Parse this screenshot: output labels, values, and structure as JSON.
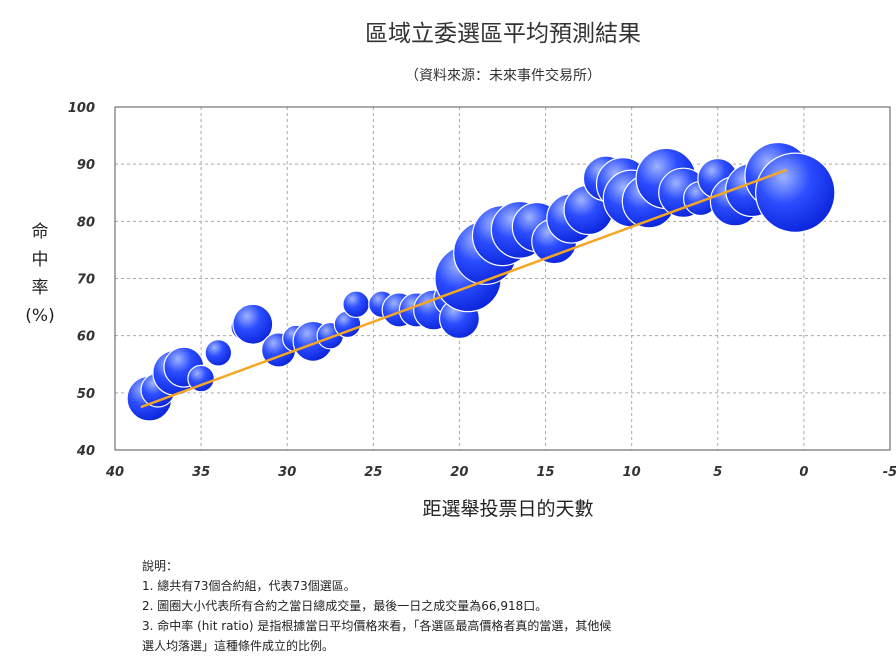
{
  "chart_data": {
    "type": "scatter",
    "title": "區域立委選區平均預測結果",
    "subtitle": "（資料來源：未來事件交易所）",
    "xlabel": "距選舉投票日的天數",
    "ylabel": "命\n中\n率\n(%)",
    "xlim": [
      40,
      -5
    ],
    "ylim": [
      40,
      100
    ],
    "x_ticks": [
      "40",
      "35",
      "30",
      "25",
      "20",
      "15",
      "10",
      "5",
      "0",
      "-5"
    ],
    "y_ticks": [
      "40",
      "50",
      "60",
      "70",
      "80",
      "90",
      "100"
    ],
    "grid": true,
    "legend": "none",
    "colors": {
      "bubble": "#1a3cff",
      "bubble_light": "#8aa0ff",
      "trend": "#f5a623",
      "frame": "#555555",
      "grid": "#aaaaaa"
    },
    "points": [
      {
        "x": 38,
        "y": 49,
        "size": 4
      },
      {
        "x": 37.5,
        "y": 50.5,
        "size": 2
      },
      {
        "x": 36.5,
        "y": 53.5,
        "size": 4
      },
      {
        "x": 36,
        "y": 54.5,
        "size": 3
      },
      {
        "x": 35,
        "y": 52.5,
        "size": 1
      },
      {
        "x": 34,
        "y": 57,
        "size": 1
      },
      {
        "x": 32.5,
        "y": 61.5,
        "size": 1
      },
      {
        "x": 32,
        "y": 62,
        "size": 3
      },
      {
        "x": 30.5,
        "y": 57.5,
        "size": 2
      },
      {
        "x": 29.5,
        "y": 59.5,
        "size": 1
      },
      {
        "x": 28.5,
        "y": 59,
        "size": 3
      },
      {
        "x": 27.5,
        "y": 60,
        "size": 1
      },
      {
        "x": 26.5,
        "y": 62,
        "size": 1
      },
      {
        "x": 26,
        "y": 65.5,
        "size": 1
      },
      {
        "x": 24.5,
        "y": 65.5,
        "size": 1
      },
      {
        "x": 23.5,
        "y": 64.5,
        "size": 2
      },
      {
        "x": 22.5,
        "y": 64.5,
        "size": 2
      },
      {
        "x": 21.5,
        "y": 64.5,
        "size": 3
      },
      {
        "x": 20.5,
        "y": 66.5,
        "size": 2
      },
      {
        "x": 20,
        "y": 63,
        "size": 3
      },
      {
        "x": 19.5,
        "y": 70,
        "size": 10
      },
      {
        "x": 18.5,
        "y": 74.5,
        "size": 9
      },
      {
        "x": 17.5,
        "y": 77.5,
        "size": 8
      },
      {
        "x": 16.5,
        "y": 78.5,
        "size": 7
      },
      {
        "x": 15.5,
        "y": 79,
        "size": 5
      },
      {
        "x": 14.5,
        "y": 76.5,
        "size": 4
      },
      {
        "x": 13.5,
        "y": 80.5,
        "size": 5
      },
      {
        "x": 12.5,
        "y": 82,
        "size": 5
      },
      {
        "x": 11.5,
        "y": 87.5,
        "size": 4
      },
      {
        "x": 10.5,
        "y": 86.5,
        "size": 6
      },
      {
        "x": 10,
        "y": 84,
        "size": 7
      },
      {
        "x": 9,
        "y": 83.5,
        "size": 6
      },
      {
        "x": 8,
        "y": 87.5,
        "size": 8
      },
      {
        "x": 7,
        "y": 85,
        "size": 5
      },
      {
        "x": 6,
        "y": 84,
        "size": 2
      },
      {
        "x": 5,
        "y": 87.5,
        "size": 3
      },
      {
        "x": 4,
        "y": 83.5,
        "size": 5
      },
      {
        "x": 3,
        "y": 85.5,
        "size": 6
      },
      {
        "x": 1.5,
        "y": 88,
        "size": 10
      },
      {
        "x": 0.5,
        "y": 85,
        "size": 15
      }
    ],
    "trendline": {
      "x": [
        38.5,
        1
      ],
      "y": [
        47.5,
        89
      ]
    }
  },
  "notes": {
    "heading": "說明：",
    "lines": [
      "1. 總共有73個合約組，代表73個選區。",
      "2. 圖圈大小代表所有合約之當日總成交量，最後一日之成交量為66,918口。",
      "3. 命中率 (hit ratio) 是指根據當日平均價格來看，「各選區最高價格者真的當選，其他候",
      "選人均落選」這種條件成立的比例。"
    ]
  }
}
